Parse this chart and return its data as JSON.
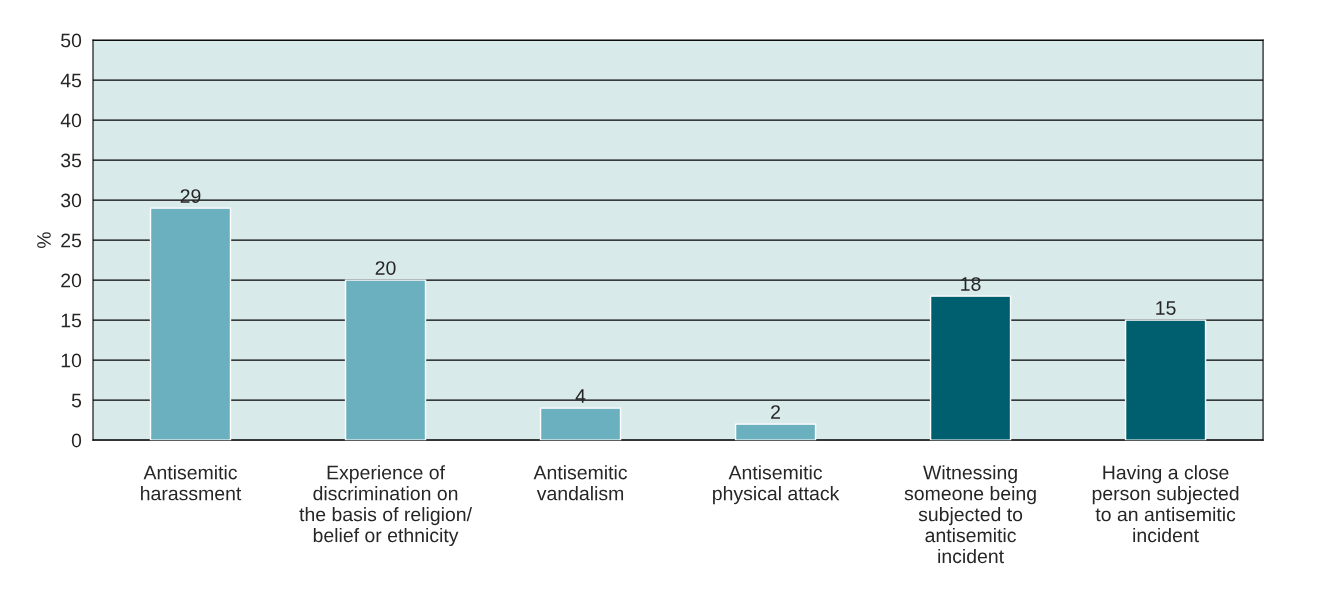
{
  "chart_data": {
    "type": "bar",
    "ylabel": "%",
    "categories": [
      "Antisemitic\nharassment",
      "Experience of\ndiscrimination on\nthe basis of religion/\nbelief or ethnicity",
      "Antisemitic\nvandalism",
      "Antisemitic\nphysical attack",
      "Witnessing\nsomeone being\nsubjected to\nantisemitic\nincident",
      "Having a close\nperson subjected\nto an antisemitic\nincident"
    ],
    "values": [
      29,
      20,
      4,
      2,
      18,
      15
    ],
    "colors": [
      "#6ab0be",
      "#6ab0be",
      "#6ab0be",
      "#6ab0be",
      "#005f6e",
      "#005f6e"
    ],
    "ylim": [
      0,
      50
    ],
    "yticks": [
      0,
      5,
      10,
      15,
      20,
      25,
      30,
      35,
      40,
      45,
      50
    ],
    "grid": "y",
    "data_labels": true
  }
}
